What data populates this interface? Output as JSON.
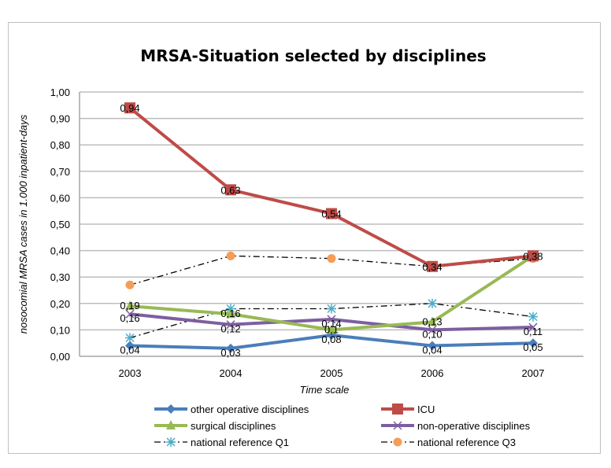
{
  "chart_data": {
    "type": "line",
    "title": "MRSA-Situation selected by disciplines",
    "xlabel": "Time scale",
    "ylabel": "nosocomial MRSA cases in 1.000 inpatient-days",
    "categories": [
      "2003",
      "2004",
      "2005",
      "2006",
      "2007"
    ],
    "ylim": [
      0,
      1.0
    ],
    "yticks": [
      "0,00",
      "0,10",
      "0,20",
      "0,30",
      "0,40",
      "0,50",
      "0,60",
      "0,70",
      "0,80",
      "0,90",
      "1,00"
    ],
    "grid": true,
    "legend_position": "bottom",
    "series": [
      {
        "name": "other operative disciplines",
        "color": "#4a7ebb",
        "marker": "diamond",
        "style": "solid",
        "values": [
          0.04,
          0.03,
          0.08,
          0.04,
          0.05
        ],
        "labels": [
          "0,04",
          "0,03",
          "0,08",
          "0,04",
          "0,05"
        ]
      },
      {
        "name": "ICU",
        "color": "#be4b48",
        "marker": "square",
        "style": "solid",
        "values": [
          0.94,
          0.63,
          0.54,
          0.34,
          0.38
        ],
        "labels": [
          "0,94",
          "0,63",
          "0,54",
          "0,34",
          "0,38"
        ]
      },
      {
        "name": "surgical disciplines",
        "color": "#98b954",
        "marker": "triangle",
        "style": "solid",
        "values": [
          0.19,
          0.16,
          0.1,
          0.13,
          0.38
        ],
        "labels": [
          "0,19",
          "0,16",
          "0,1",
          "0,13",
          ""
        ]
      },
      {
        "name": "non-operative disciplines",
        "color": "#7d5fa0",
        "marker": "x",
        "style": "solid",
        "values": [
          0.16,
          0.12,
          0.14,
          0.1,
          0.11
        ],
        "labels": [
          "0,16",
          "0,12",
          "0,14",
          "0,10",
          "0,11"
        ]
      },
      {
        "name": "national reference Q1",
        "color": "#4bacc6",
        "marker": "star",
        "style": "dashdot",
        "values": [
          0.07,
          0.18,
          0.18,
          0.2,
          0.15
        ],
        "labels": [
          "",
          "",
          "",
          "",
          ""
        ]
      },
      {
        "name": "national reference Q3",
        "color": "#f59d56",
        "marker": "circle",
        "style": "dashdot",
        "values": [
          0.27,
          0.38,
          0.37,
          0.34,
          0.37
        ],
        "labels": [
          "",
          "",
          "",
          "",
          ""
        ]
      }
    ]
  }
}
